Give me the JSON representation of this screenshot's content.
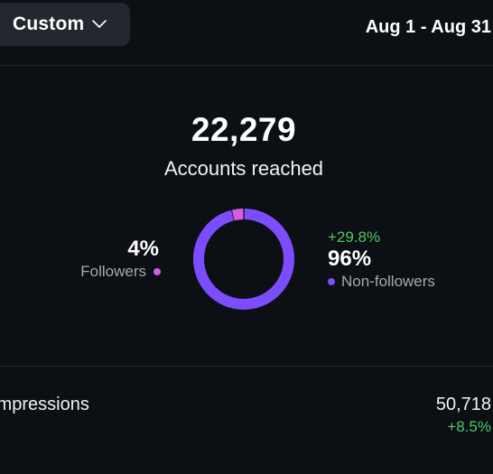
{
  "header": {
    "range_selector": "Custom",
    "date_range": "Aug 1 - Aug 31"
  },
  "reach": {
    "total": "22,279",
    "label": "Accounts reached"
  },
  "breakdown": {
    "followers": {
      "percent": "4%",
      "label": "Followers",
      "share": 0.04,
      "color": "#d65ce6"
    },
    "non_followers": {
      "percent": "96%",
      "label": "Non-followers",
      "change": "+29.8%",
      "share": 0.96,
      "color": "#7c4dff"
    }
  },
  "impressions": {
    "label": "Impressions",
    "value": "50,718",
    "change": "+8.5%"
  },
  "colors": {
    "background": "#0c0f13",
    "positive": "#4cc865"
  },
  "icons": {
    "range_chevron": "chevron-down-icon"
  }
}
